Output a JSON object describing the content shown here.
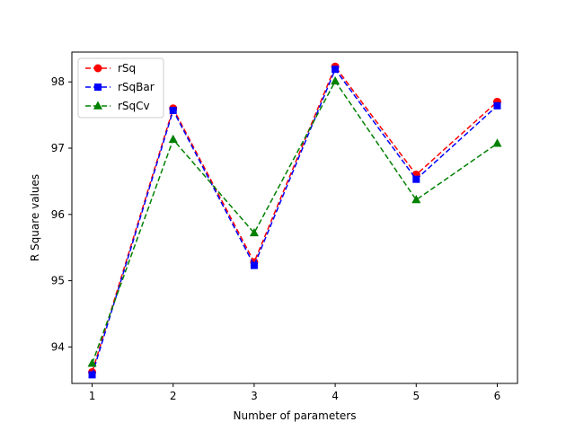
{
  "chart_data": {
    "type": "line",
    "title": "",
    "xlabel": "Number of parameters",
    "ylabel": "R Square values",
    "x": [
      1,
      2,
      3,
      4,
      5,
      6
    ],
    "xlim": [
      0.75,
      6.25
    ],
    "ylim": [
      93.45,
      98.45
    ],
    "xticks": [
      1,
      2,
      3,
      4,
      5,
      6
    ],
    "yticks": [
      94,
      95,
      96,
      97,
      98
    ],
    "grid": false,
    "legend_position": "top-left",
    "series": [
      {
        "name": "rSq",
        "values": [
          93.62,
          97.6,
          95.28,
          98.23,
          96.6,
          97.7
        ],
        "color": "#ff0000",
        "marker": "circle",
        "linestyle": "dashed"
      },
      {
        "name": "rSqBar",
        "values": [
          93.58,
          97.57,
          95.23,
          98.19,
          96.53,
          97.64
        ],
        "color": "#0000ff",
        "marker": "square",
        "linestyle": "dashed"
      },
      {
        "name": "rSqCv",
        "values": [
          93.75,
          97.13,
          95.72,
          98.01,
          96.22,
          97.07
        ],
        "color": "#008000",
        "marker": "triangle",
        "linestyle": "dashed"
      }
    ]
  }
}
